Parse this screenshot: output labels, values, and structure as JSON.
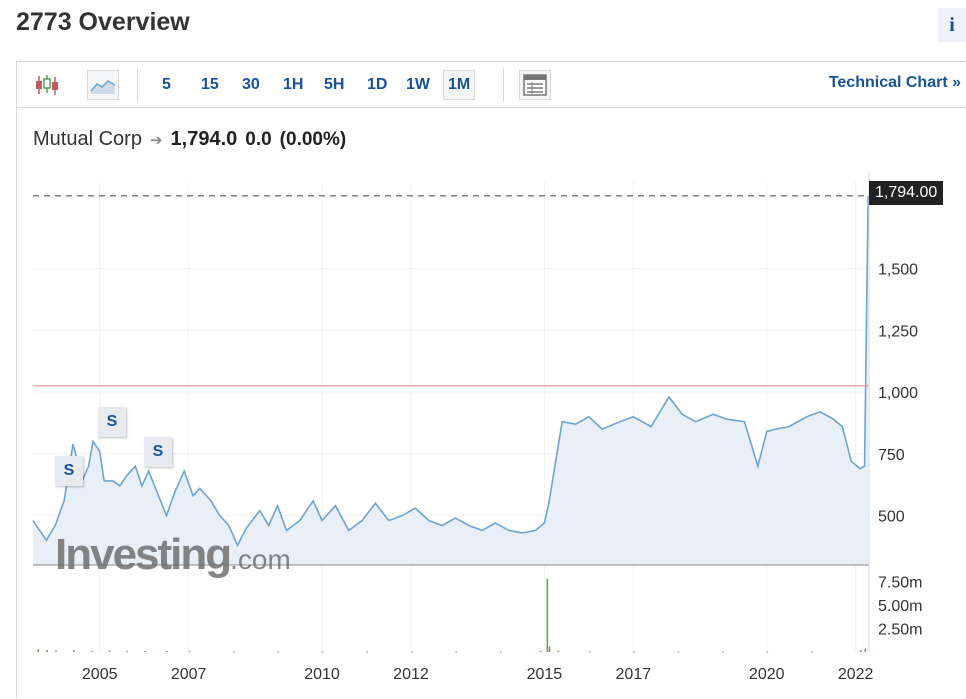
{
  "header": {
    "title": "2773 Overview",
    "info_label": "i"
  },
  "toolbar": {
    "intervals": [
      "5",
      "15",
      "30",
      "1H",
      "5H",
      "1D",
      "1W",
      "1M"
    ],
    "active_interval": "1M",
    "technical_chart_label": "Technical Chart »"
  },
  "legend": {
    "name": "Mutual Corp",
    "price": "1,794.0",
    "change": "0.0",
    "change_pct": "(0.00%)"
  },
  "last_price_tag": "1,794.00",
  "watermark": {
    "main": "Investing",
    "suffix": ".com"
  },
  "split_label": "S",
  "colors": {
    "line": "#6fa3d0",
    "area": "#e8eff6",
    "reference_line": "#e88a7a",
    "volume_up": "#5a9e5a",
    "volume_down": "#c25b5b",
    "link": "#1a5296"
  },
  "chart_data": [
    {
      "type": "area",
      "series": [
        {
          "name": "Mutual Corp",
          "x": [
            2003.5,
            2003.8,
            2004.0,
            2004.2,
            2004.4,
            2004.5,
            2004.6,
            2004.75,
            2004.85,
            2005.0,
            2005.1,
            2005.3,
            2005.45,
            2005.6,
            2005.8,
            2005.95,
            2006.1,
            2006.3,
            2006.5,
            2006.7,
            2006.9,
            2007.1,
            2007.25,
            2007.5,
            2007.7,
            2007.9,
            2008.1,
            2008.3,
            2008.6,
            2008.8,
            2009.0,
            2009.2,
            2009.5,
            2009.8,
            2010.0,
            2010.3,
            2010.6,
            2010.9,
            2011.2,
            2011.5,
            2011.8,
            2012.1,
            2012.4,
            2012.7,
            2013.0,
            2013.3,
            2013.6,
            2013.9,
            2014.2,
            2014.5,
            2014.8,
            2015.0,
            2015.1,
            2015.4,
            2015.7,
            2016.0,
            2016.3,
            2016.7,
            2017.0,
            2017.4,
            2017.8,
            2018.1,
            2018.4,
            2018.8,
            2019.1,
            2019.5,
            2019.8,
            2020.0,
            2020.2,
            2020.5,
            2020.9,
            2021.2,
            2021.5,
            2021.7,
            2021.9,
            2022.1,
            2022.2,
            2022.28
          ],
          "values": [
            480,
            400,
            460,
            560,
            790,
            720,
            640,
            700,
            800,
            760,
            640,
            640,
            620,
            660,
            700,
            620,
            680,
            590,
            500,
            600,
            680,
            580,
            610,
            560,
            500,
            460,
            380,
            450,
            520,
            460,
            540,
            440,
            480,
            560,
            480,
            540,
            440,
            480,
            550,
            480,
            500,
            530,
            480,
            460,
            490,
            460,
            440,
            470,
            440,
            430,
            440,
            470,
            550,
            880,
            870,
            900,
            850,
            880,
            900,
            860,
            980,
            910,
            880,
            910,
            890,
            880,
            700,
            840,
            850,
            860,
            900,
            920,
            890,
            860,
            720,
            690,
            700,
            1794
          ]
        }
      ],
      "reference_line": 1025,
      "last_value": 1794,
      "ylim": [
        300,
        1850
      ],
      "xlim": [
        2003.5,
        2022.3
      ],
      "y_ticks": [
        "500",
        "750",
        "1,000",
        "1,250",
        "1,500"
      ],
      "x_ticks": [
        "2005",
        "2007",
        "2010",
        "2012",
        "2015",
        "2017",
        "2020",
        "2022"
      ],
      "grid": true
    },
    {
      "type": "bar",
      "name": "volume",
      "y_ticks": [
        "2.50m",
        "5.00m",
        "7.50m"
      ],
      "ylim": [
        0,
        8000000
      ],
      "x": [
        2003.6,
        2003.8,
        2004.0,
        2004.4,
        2004.8,
        2005.2,
        2005.6,
        2006.0,
        2006.5,
        2007.0,
        2008.0,
        2009.0,
        2010.0,
        2011.0,
        2012.0,
        2013.0,
        2014.0,
        2014.9,
        2015.05,
        2015.1,
        2015.3,
        2016.0,
        2017.0,
        2018.0,
        2019.0,
        2020.0,
        2021.0,
        2022.1,
        2022.2
      ],
      "values": [
        300000,
        200000,
        150000,
        200000,
        120000,
        150000,
        100000,
        120000,
        100000,
        80000,
        60000,
        50000,
        40000,
        50000,
        40000,
        30000,
        30000,
        100000,
        7800000,
        600000,
        150000,
        80000,
        60000,
        50000,
        40000,
        50000,
        40000,
        200000,
        350000
      ]
    }
  ]
}
